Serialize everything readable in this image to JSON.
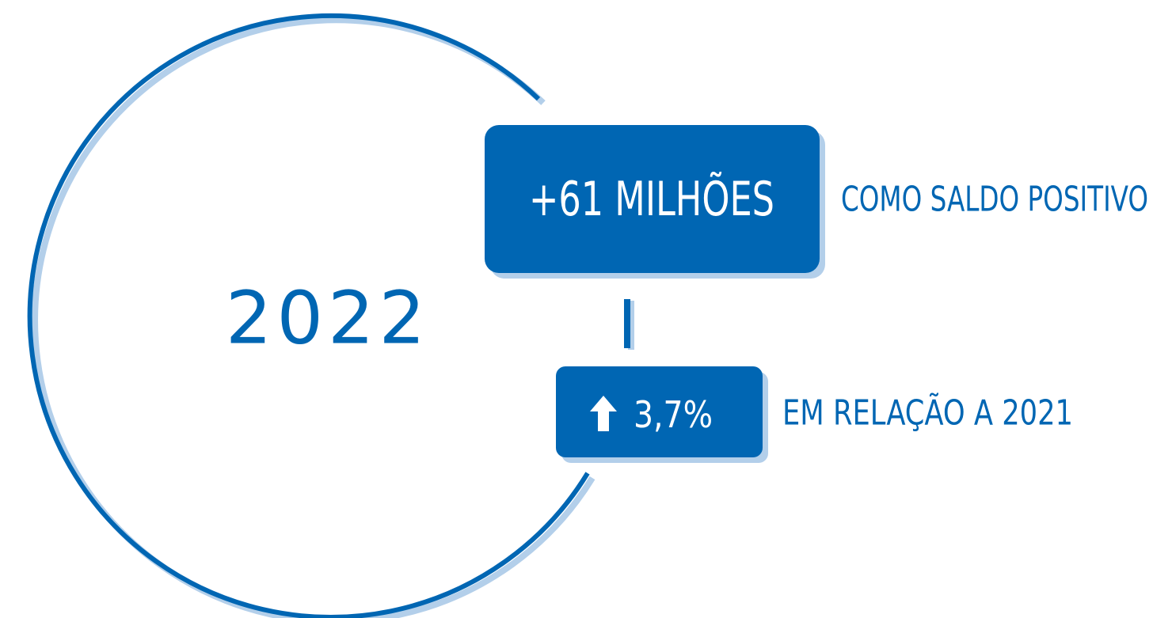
{
  "year": "2022",
  "highlight": {
    "value": "+61 MILHÕES",
    "caption": "COMO SALDO POSITIVO"
  },
  "change": {
    "value": "3,7%",
    "caption": "EM RELAÇÃO A 2021"
  }
}
